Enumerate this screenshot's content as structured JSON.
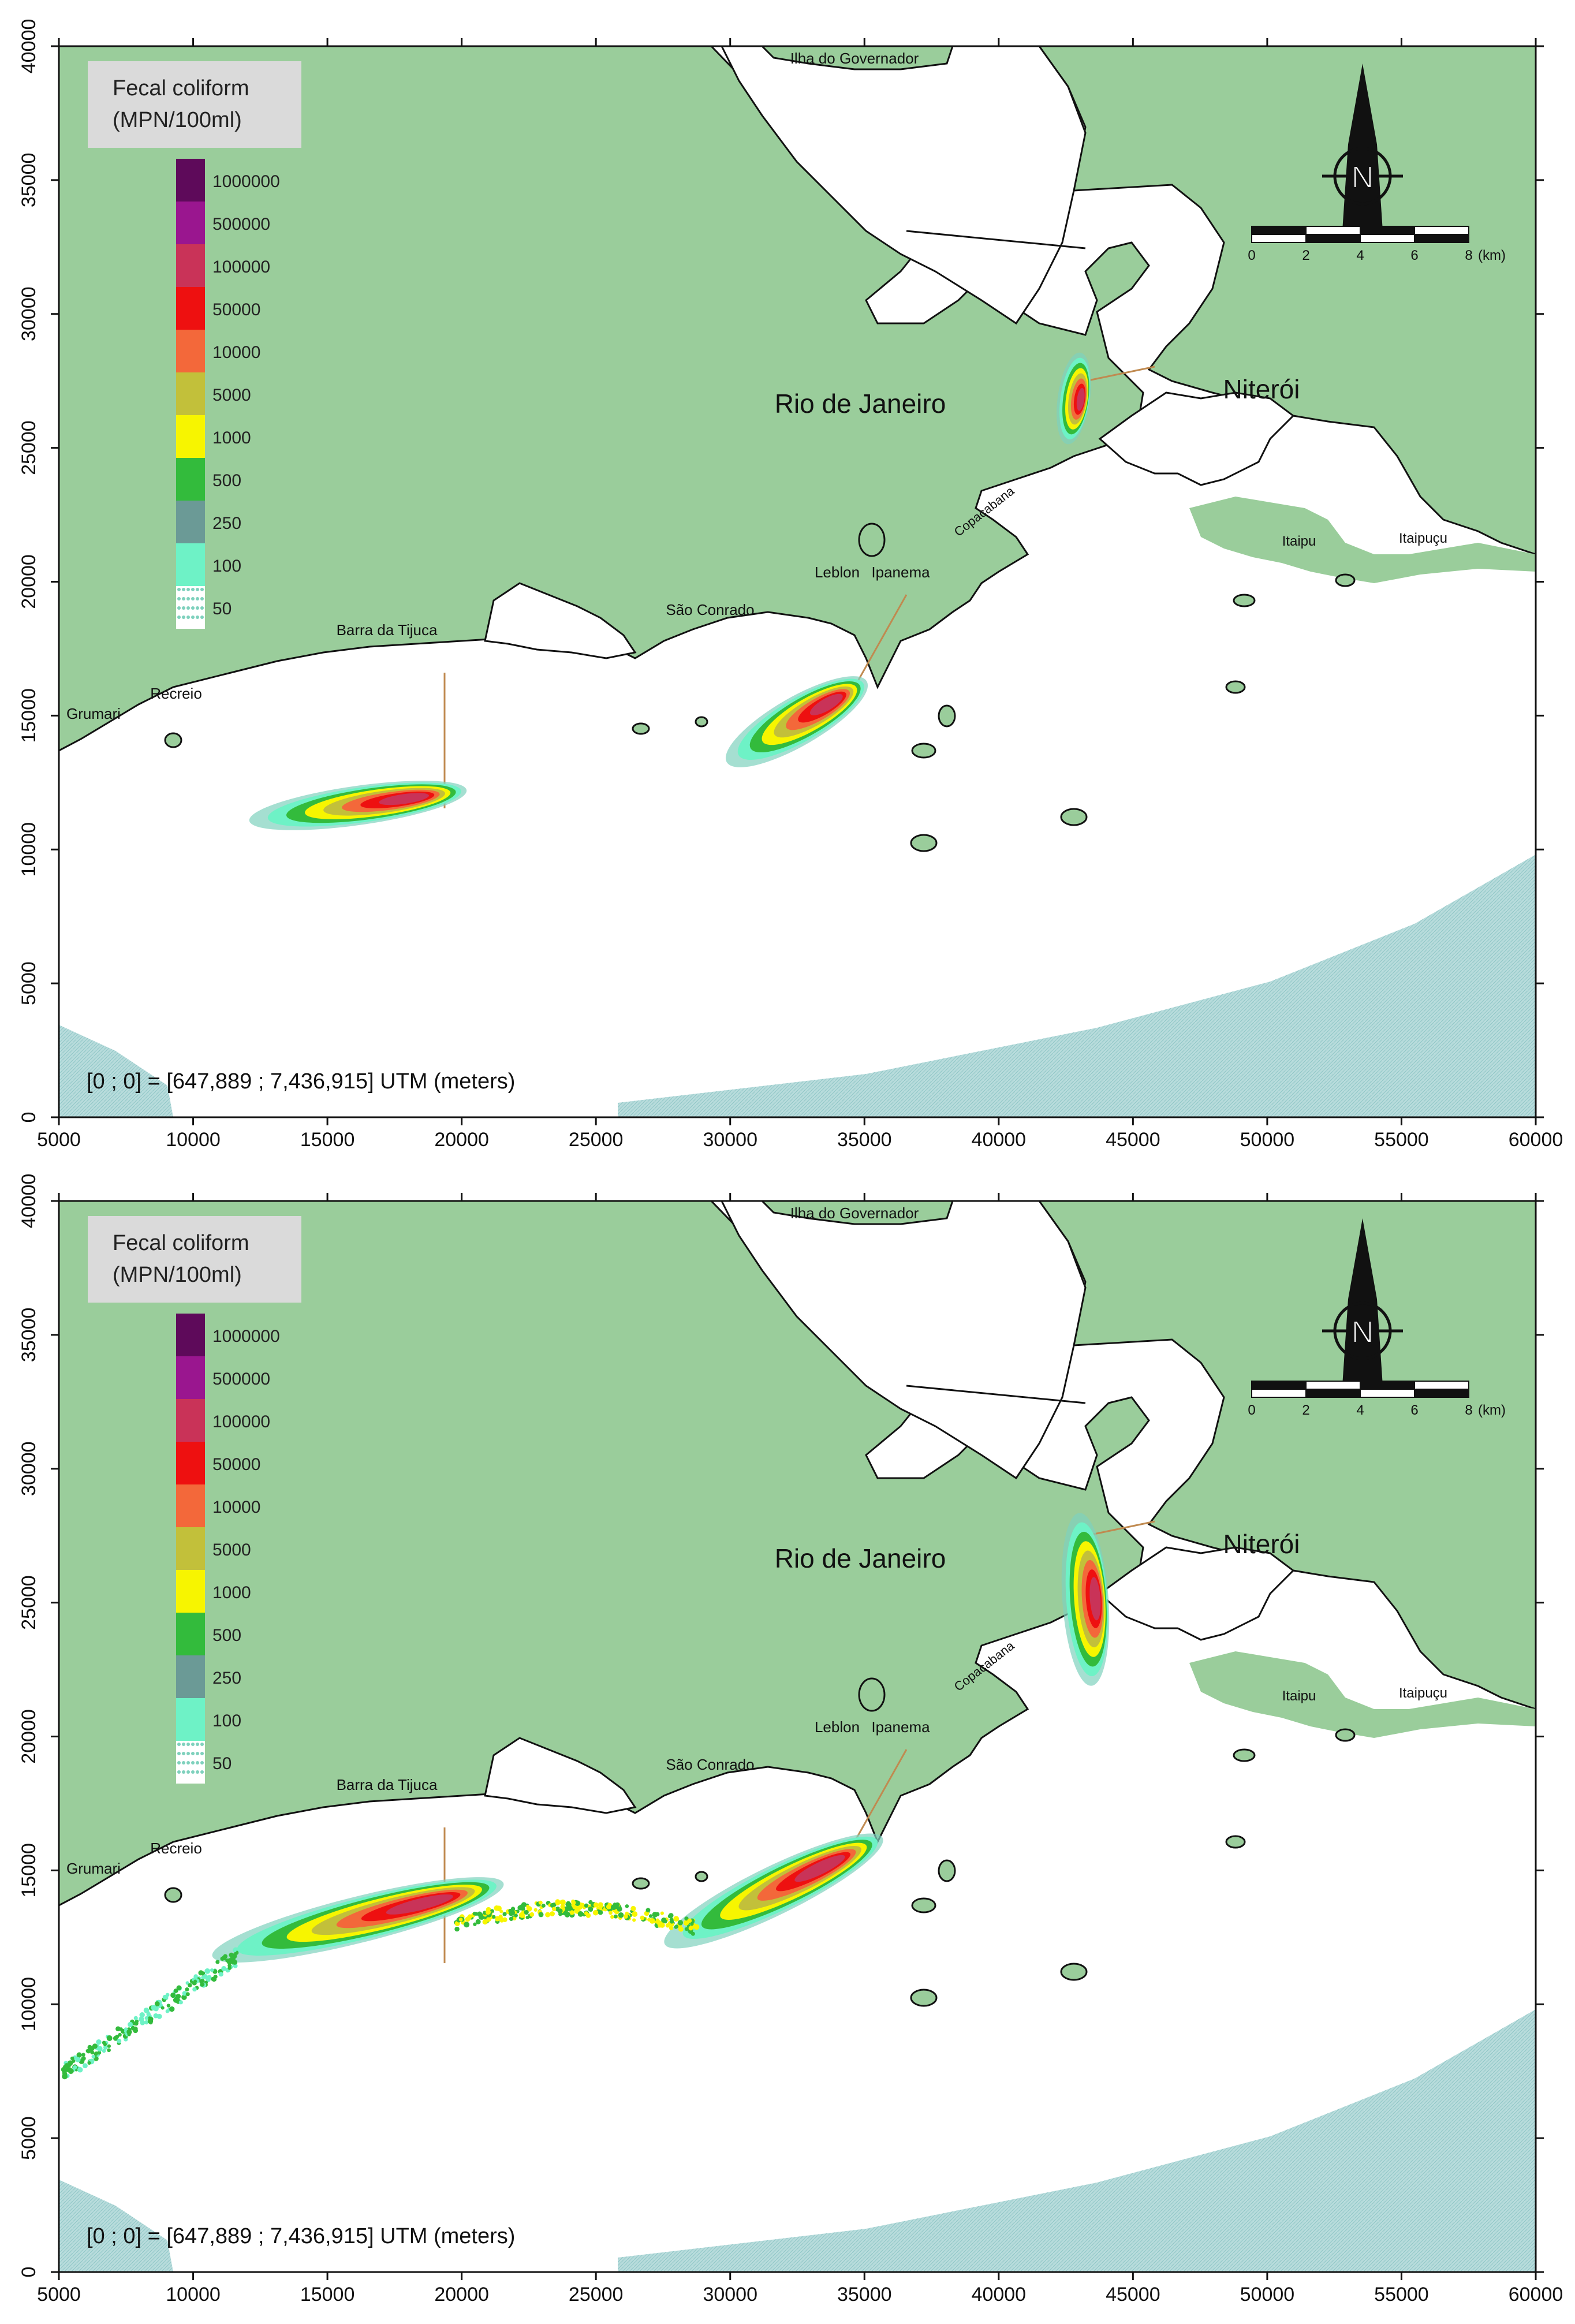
{
  "legend": {
    "title_line1": "Fecal coliform",
    "title_line2": "(MPN/100ml)",
    "bins": [
      {
        "label": "1000000",
        "color": "#5e0a5a"
      },
      {
        "label": "500000",
        "color": "#9a168f"
      },
      {
        "label": "100000",
        "color": "#c93358"
      },
      {
        "label": "50000",
        "color": "#ee1010"
      },
      {
        "label": "10000",
        "color": "#f3683a"
      },
      {
        "label": "5000",
        "color": "#c2c03a"
      },
      {
        "label": "1000",
        "color": "#f7f500"
      },
      {
        "label": "500",
        "color": "#33bb3c"
      },
      {
        "label": "250",
        "color": "#6b9a96"
      },
      {
        "label": "100",
        "color": "#6ef2c6"
      },
      {
        "label": "50",
        "color": "#7fd1bd"
      }
    ]
  },
  "axes": {
    "x_ticks": [
      "5000",
      "10000",
      "15000",
      "20000",
      "25000",
      "30000",
      "35000",
      "40000",
      "45000",
      "50000",
      "55000",
      "60000"
    ],
    "y_ticks": [
      "0",
      "5000",
      "10000",
      "15000",
      "20000",
      "25000",
      "30000",
      "35000",
      "40000"
    ],
    "xlim": [
      5000,
      60000
    ],
    "ylim": [
      0,
      40000
    ]
  },
  "places": {
    "ilha": "Ilha do Governador",
    "rio": "Rio de Janeiro",
    "niteroi": "Niterói",
    "itaipu": "Itaipu",
    "itaipucu": "Itaipuçu",
    "leblon": "Leblon",
    "ipanema": "Ipanema",
    "copacabana": "Copacabana",
    "sao_conrado": "São Conrado",
    "barra": "Barra da Tijuca",
    "recreio": "Recreio",
    "grumari": "Grumari"
  },
  "scale_bar": {
    "labels": [
      "0",
      "2",
      "4",
      "6",
      "8"
    ],
    "unit": "(km)"
  },
  "compass": {
    "letter": "N"
  },
  "note": "[0 ; 0] = [647,889 ; 7,436,915] UTM (meters)",
  "colors": {
    "land": "#9acd9b",
    "sea": "#ffffff",
    "boundary_hatch": "#b8dcdc",
    "outfall": "#c08a50"
  }
}
